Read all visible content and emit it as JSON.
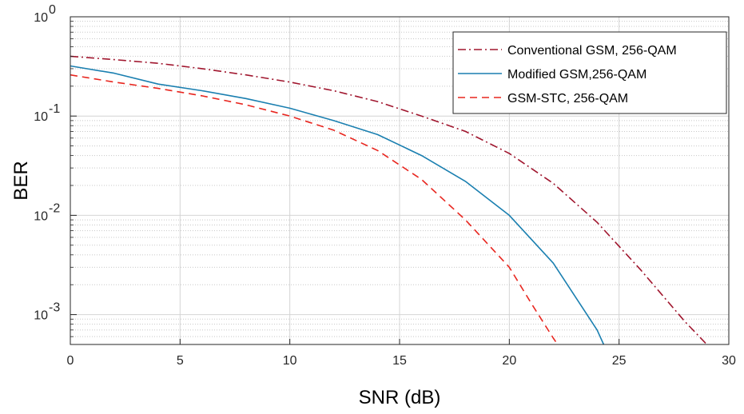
{
  "chart_data": {
    "type": "line",
    "xlabel": "SNR (dB)",
    "ylabel": "BER",
    "xlim": [
      0,
      30
    ],
    "ylim": [
      0.0005,
      1
    ],
    "yscale": "log",
    "grid": true,
    "legend_position": "top-right",
    "x_ticks": [
      0,
      5,
      10,
      15,
      20,
      25,
      30
    ],
    "x_tick_labels": [
      "0",
      "5",
      "10",
      "15",
      "20",
      "25",
      "30"
    ],
    "y_ticks": [
      {
        "value": 1,
        "base": "10",
        "exp": "0"
      },
      {
        "value": 0.1,
        "base": "10",
        "exp": "-1"
      },
      {
        "value": 0.01,
        "base": "10",
        "exp": "-2"
      },
      {
        "value": 0.001,
        "base": "10",
        "exp": "-3"
      }
    ],
    "series": [
      {
        "name": "Conventional GSM, 256-QAM",
        "color": "#a0162e",
        "style": "dashdot",
        "x": [
          0,
          2,
          4,
          6,
          8,
          10,
          12,
          14,
          16,
          18,
          20,
          22,
          24,
          26,
          28,
          29
        ],
        "y": [
          0.4,
          0.37,
          0.34,
          0.3,
          0.26,
          0.22,
          0.18,
          0.14,
          0.1,
          0.07,
          0.042,
          0.021,
          0.0085,
          0.0028,
          0.00085,
          0.0005
        ]
      },
      {
        "name": "Modified GSM,256-QAM",
        "color": "#1a7fb0",
        "style": "solid",
        "x": [
          0,
          2,
          4,
          6,
          8,
          10,
          12,
          14,
          16,
          18,
          20,
          22,
          24,
          24.3
        ],
        "y": [
          0.32,
          0.27,
          0.21,
          0.18,
          0.15,
          0.12,
          0.09,
          0.065,
          0.04,
          0.022,
          0.01,
          0.0033,
          0.0007,
          0.0005
        ]
      },
      {
        "name": "GSM-STC, 256-QAM",
        "color": "#e8261f",
        "style": "dashed",
        "x": [
          0,
          2,
          4,
          6,
          8,
          10,
          12,
          14,
          16,
          18,
          20,
          21,
          22,
          22.2
        ],
        "y": [
          0.26,
          0.22,
          0.19,
          0.16,
          0.13,
          0.1,
          0.072,
          0.045,
          0.023,
          0.009,
          0.003,
          0.0013,
          0.00058,
          0.0005
        ]
      }
    ]
  }
}
